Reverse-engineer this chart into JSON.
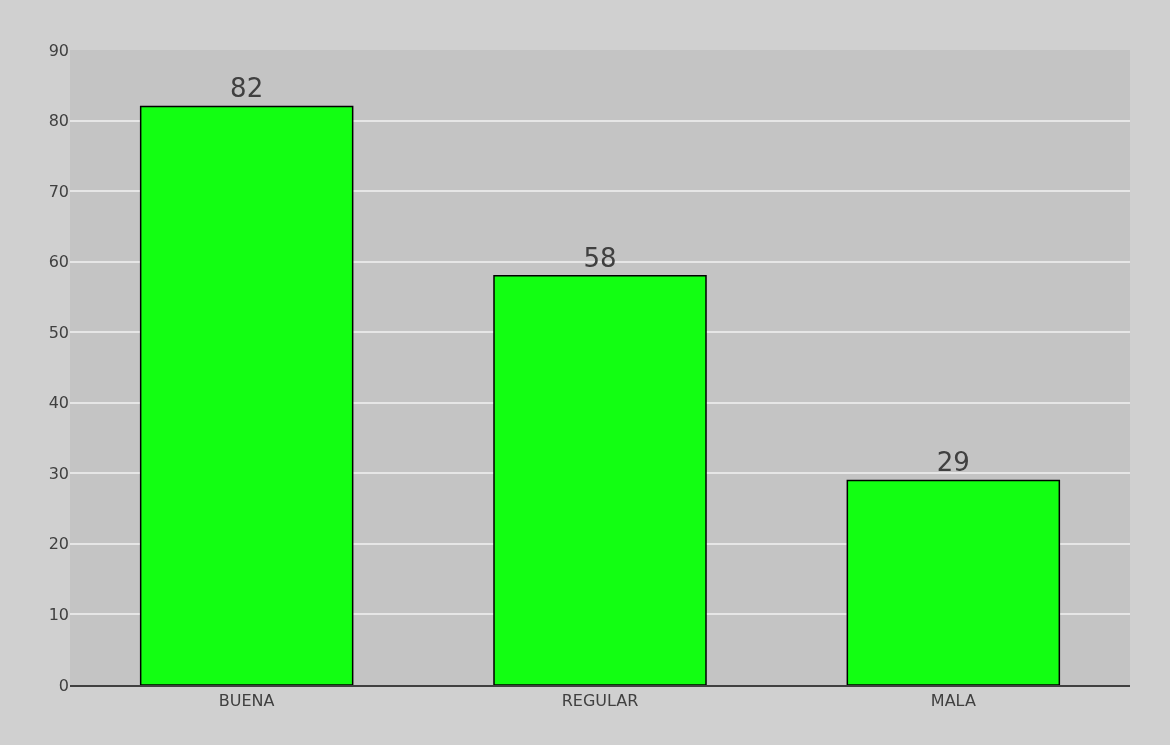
{
  "chart_data": {
    "type": "bar",
    "categories": [
      "BUENA",
      "REGULAR",
      "MALA"
    ],
    "values": [
      82,
      58,
      29
    ],
    "color": "#12ff12",
    "ylim": [
      0,
      90
    ],
    "yticks": [
      0,
      10,
      20,
      30,
      40,
      50,
      60,
      70,
      80,
      90
    ],
    "grid": "y",
    "data_labels": true
  }
}
